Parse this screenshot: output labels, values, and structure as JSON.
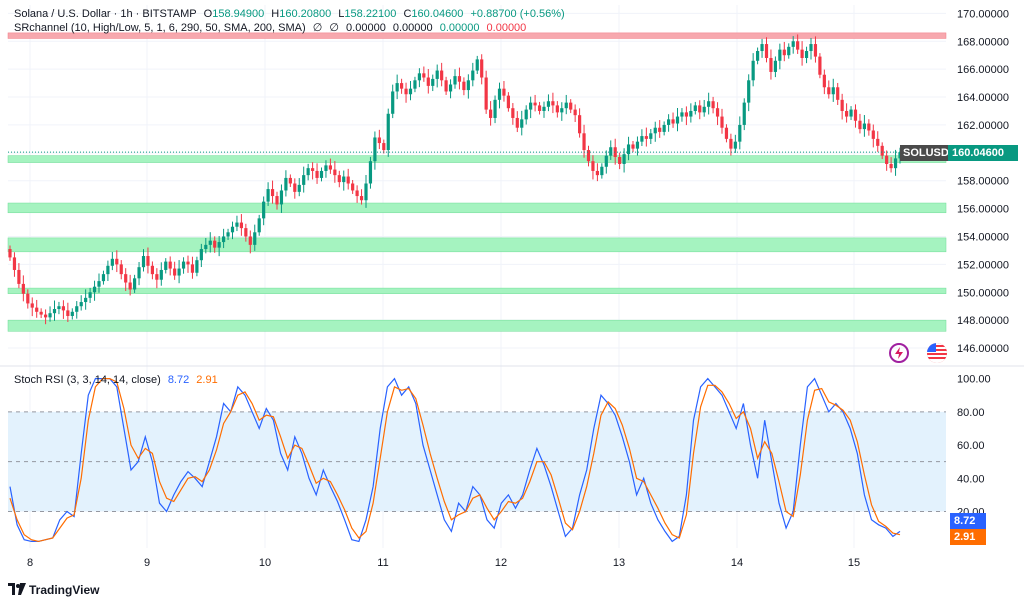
{
  "header": {
    "symbol_title": "Solana / U.S. Dollar · 1h · BITSTAMP",
    "open_label": "O",
    "open": "158.94900",
    "high_label": "H",
    "high": "160.20800",
    "low_label": "L",
    "low": "158.22100",
    "close_label": "C",
    "close": "160.04600",
    "change": "+0.88700 (+0.56%)"
  },
  "indicator": {
    "name": "SRchannel (10, High/Low, 5, 1, 6, 290, 50, SMA, 200, SMA)",
    "sym1": "∅",
    "sym2": "∅",
    "v1": "0.00000",
    "v2": "0.00000",
    "v3": "0.00000",
    "v4": "0.00000"
  },
  "oscillator": {
    "name": "Stoch RSI (3, 3, 14, 14, close)",
    "k": "8.72",
    "d": "2.91"
  },
  "price_badge": {
    "symbol": "SOLUSD",
    "value": "160.04600"
  },
  "rsi_badges": {
    "k": "8.72",
    "d": "2.91"
  },
  "branding": {
    "logo": "TradingView"
  },
  "colors": {
    "up": "#089981",
    "down": "#f23645",
    "k_line": "#2962ff",
    "d_line": "#ff6d00",
    "sr_zone": "#a5f3c0",
    "resistance_zone": "#f7a8ae",
    "rsi_band": "#e3f2fd"
  },
  "chart_data": [
    {
      "type": "candlestick",
      "x_tick_labels": [
        "8",
        "9",
        "10",
        "11",
        "12",
        "13",
        "14",
        "15"
      ],
      "y_tick_labels": [
        "146.00000",
        "148.00000",
        "150.00000",
        "152.00000",
        "154.00000",
        "156.00000",
        "158.00000",
        "160.00000",
        "162.00000",
        "164.00000",
        "166.00000",
        "168.00000",
        "170.00000"
      ],
      "ylim": [
        145.0,
        170.6
      ],
      "last_price": 160.046,
      "support_zones": [
        [
          147.2,
          148.0
        ],
        [
          149.9,
          150.3
        ],
        [
          152.9,
          153.9
        ],
        [
          155.7,
          156.4
        ],
        [
          159.3,
          159.8
        ]
      ],
      "resistance_zones": [
        [
          168.2,
          168.6
        ]
      ],
      "candles_close": [
        152.5,
        151.6,
        150.6,
        149.9,
        149.2,
        148.9,
        148.6,
        148.4,
        148.2,
        148.5,
        148.8,
        149.0,
        148.7,
        148.3,
        148.6,
        149.0,
        149.3,
        149.6,
        150.0,
        150.4,
        150.8,
        151.3,
        151.9,
        152.4,
        152.0,
        151.3,
        150.7,
        150.2,
        151.0,
        151.8,
        152.6,
        151.9,
        151.3,
        150.9,
        151.6,
        152.2,
        151.7,
        151.2,
        151.7,
        152.2,
        152.0,
        151.4,
        152.3,
        153.1,
        153.4,
        153.7,
        153.2,
        153.6,
        154.0,
        154.3,
        154.7,
        155.0,
        154.6,
        154.0,
        153.4,
        154.3,
        155.3,
        156.5,
        157.4,
        156.9,
        156.3,
        157.3,
        158.2,
        157.8,
        157.2,
        157.7,
        158.4,
        158.9,
        158.7,
        158.2,
        158.7,
        159.1,
        158.8,
        158.4,
        157.9,
        158.3,
        157.8,
        157.3,
        156.9,
        156.6,
        157.8,
        159.4,
        161.1,
        160.7,
        160.2,
        162.8,
        164.4,
        165.0,
        164.6,
        164.2,
        164.6,
        165.2,
        165.7,
        165.4,
        164.8,
        165.3,
        165.9,
        165.2,
        164.4,
        164.9,
        165.5,
        165.1,
        164.5,
        165.2,
        165.9,
        166.7,
        165.4,
        163.1,
        162.5,
        163.8,
        164.6,
        164.1,
        163.2,
        162.5,
        161.8,
        162.4,
        163.1,
        163.6,
        163.4,
        163.0,
        163.3,
        163.7,
        163.4,
        162.9,
        163.2,
        163.6,
        163.1,
        162.7,
        161.4,
        160.2,
        159.4,
        158.7,
        158.4,
        159.0,
        159.8,
        160.4,
        159.7,
        159.2,
        159.9,
        160.6,
        160.3,
        160.8,
        161.2,
        161.0,
        161.4,
        161.8,
        161.5,
        162.0,
        162.4,
        162.1,
        162.6,
        162.9,
        162.6,
        163.0,
        163.4,
        162.9,
        163.3,
        163.7,
        163.2,
        162.6,
        161.8,
        161.0,
        160.3,
        160.8,
        162.0,
        163.6,
        165.2,
        166.6,
        167.3,
        167.8,
        166.8,
        165.8,
        166.6,
        167.4,
        167.0,
        167.6,
        168.0,
        167.4,
        166.8,
        167.3,
        167.8,
        166.9,
        165.6,
        164.7,
        164.2,
        164.7,
        163.8,
        163.0,
        162.6,
        163.1,
        162.3,
        161.7,
        162.1,
        161.6,
        161.0,
        160.5,
        159.8,
        159.2,
        158.9,
        159.6,
        160.05
      ]
    },
    {
      "type": "line",
      "name": "Stoch RSI",
      "x_tick_labels": [
        "8",
        "9",
        "10",
        "11",
        "12",
        "13",
        "14",
        "15"
      ],
      "y_tick_labels": [
        "20.00",
        "40.00",
        "60.00",
        "80.00",
        "100.00"
      ],
      "ylim": [
        -2,
        104
      ],
      "band": [
        20,
        80
      ],
      "series": [
        {
          "name": "K",
          "values": [
            35,
            12,
            3,
            2,
            2,
            3,
            4,
            15,
            20,
            17,
            55,
            90,
            100,
            100,
            100,
            95,
            70,
            45,
            50,
            65,
            50,
            25,
            20,
            30,
            38,
            44,
            40,
            35,
            50,
            65,
            85,
            80,
            95,
            90,
            80,
            70,
            82,
            75,
            55,
            45,
            65,
            55,
            40,
            30,
            45,
            35,
            26,
            15,
            3,
            2,
            15,
            35,
            70,
            95,
            100,
            90,
            95,
            85,
            60,
            45,
            30,
            15,
            8,
            25,
            20,
            35,
            30,
            15,
            10,
            25,
            30,
            22,
            30,
            45,
            58,
            48,
            35,
            20,
            5,
            10,
            30,
            45,
            70,
            90,
            85,
            78,
            65,
            50,
            30,
            40,
            25,
            15,
            8,
            2,
            5,
            30,
            75,
            95,
            100,
            95,
            90,
            80,
            70,
            85,
            60,
            40,
            75,
            50,
            25,
            10,
            20,
            60,
            95,
            100,
            90,
            80,
            85,
            80,
            70,
            55,
            30,
            15,
            12,
            10,
            5,
            8
          ]
        },
        {
          "name": "D",
          "values": [
            28,
            15,
            6,
            3,
            2,
            3,
            4,
            10,
            16,
            18,
            40,
            75,
            95,
            100,
            100,
            98,
            82,
            60,
            52,
            58,
            55,
            38,
            28,
            26,
            33,
            40,
            41,
            38,
            45,
            57,
            73,
            80,
            90,
            92,
            85,
            75,
            78,
            77,
            65,
            52,
            60,
            58,
            48,
            37,
            40,
            38,
            30,
            21,
            10,
            4,
            8,
            25,
            52,
            80,
            95,
            93,
            94,
            88,
            72,
            55,
            40,
            26,
            15,
            18,
            20,
            28,
            30,
            22,
            15,
            20,
            26,
            25,
            28,
            38,
            50,
            50,
            42,
            28,
            13,
            9,
            20,
            35,
            55,
            78,
            86,
            82,
            72,
            58,
            40,
            38,
            30,
            22,
            13,
            6,
            4,
            18,
            55,
            83,
            96,
            96,
            92,
            85,
            76,
            80,
            70,
            52,
            62,
            55,
            38,
            20,
            17,
            42,
            75,
            93,
            94,
            86,
            84,
            81,
            75,
            62,
            42,
            24,
            14,
            11,
            7,
            6
          ]
        }
      ]
    }
  ]
}
